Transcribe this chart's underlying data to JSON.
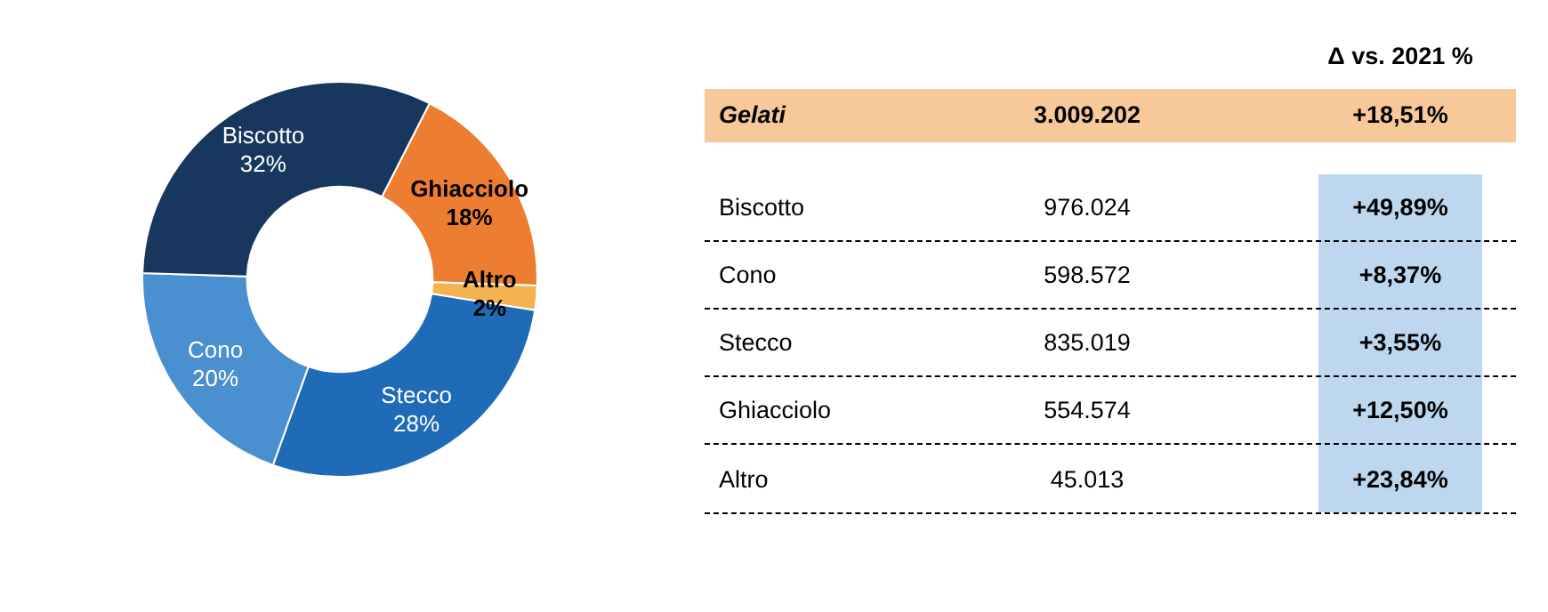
{
  "chart_data": [
    {
      "type": "donut",
      "categories": [
        "Ghiacciolo",
        "Altro",
        "Stecco",
        "Cono",
        "Biscotto"
      ],
      "values": [
        18,
        2,
        28,
        20,
        32
      ],
      "value_labels": [
        "18%",
        "2%",
        "28%",
        "20%",
        "32%"
      ],
      "colors": [
        "#ed7d31",
        "#f5b34f",
        "#1f6bb8",
        "#4a8fd0",
        "#17375e"
      ],
      "data_labels": true,
      "legend": false
    },
    {
      "type": "other",
      "title": "Δ vs. 2021 %",
      "annotations": [
        "Gelati",
        "3.009.202",
        "+18,51%",
        "Biscotto",
        "976.024",
        "+49,89%",
        "Cono",
        "598.572",
        "+8,37%",
        "Stecco",
        "835.019",
        "+3,55%",
        "Ghiacciolo",
        "554.574",
        "+12,50%",
        "Altro",
        "45.013",
        "+23,84%"
      ],
      "colors": [
        "#f7c99a",
        "#bdd7ee"
      ]
    }
  ]
}
